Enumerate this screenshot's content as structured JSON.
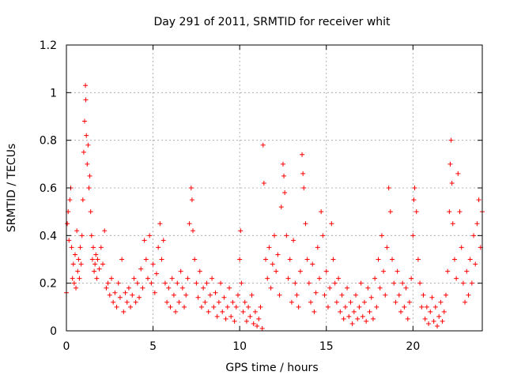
{
  "chart_data": {
    "type": "scatter",
    "title": "Day 291 of 2011, SRMTID for receiver whit",
    "xlabel": "GPS time / hours",
    "ylabel": "SRMTID / TECUs",
    "xlim": [
      0,
      24
    ],
    "ylim": [
      0,
      1.2
    ],
    "x_ticks": [
      0,
      5,
      10,
      15,
      20
    ],
    "x_tick_labels": [
      "0",
      "5",
      "10",
      "15",
      "20"
    ],
    "y_ticks": [
      0,
      0.2,
      0.4,
      0.6,
      0.8,
      1.0,
      1.2
    ],
    "y_tick_labels": [
      "0",
      "0.2",
      "0.4",
      "0.6",
      "0.8",
      "1",
      "1.2"
    ],
    "grid": true,
    "marker": "+",
    "series": [
      {
        "name": "SRMTID",
        "color": "#ff0000",
        "points": [
          [
            0.0,
            0.16
          ],
          [
            0.05,
            0.45
          ],
          [
            0.1,
            0.5
          ],
          [
            0.15,
            0.38
          ],
          [
            0.2,
            0.55
          ],
          [
            0.25,
            0.6
          ],
          [
            0.3,
            0.35
          ],
          [
            0.35,
            0.22
          ],
          [
            0.4,
            0.28
          ],
          [
            0.45,
            0.2
          ],
          [
            0.5,
            0.32
          ],
          [
            0.55,
            0.18
          ],
          [
            0.6,
            0.42
          ],
          [
            0.65,
            0.25
          ],
          [
            0.7,
            0.3
          ],
          [
            0.75,
            0.22
          ],
          [
            0.8,
            0.35
          ],
          [
            0.85,
            0.28
          ],
          [
            0.9,
            0.4
          ],
          [
            0.95,
            0.55
          ],
          [
            1.0,
            0.75
          ],
          [
            1.05,
            0.88
          ],
          [
            1.1,
            1.03
          ],
          [
            1.12,
            0.97
          ],
          [
            1.15,
            0.82
          ],
          [
            1.2,
            0.7
          ],
          [
            1.25,
            0.78
          ],
          [
            1.3,
            0.6
          ],
          [
            1.35,
            0.65
          ],
          [
            1.4,
            0.5
          ],
          [
            1.45,
            0.4
          ],
          [
            1.5,
            0.3
          ],
          [
            1.55,
            0.35
          ],
          [
            1.6,
            0.25
          ],
          [
            1.65,
            0.28
          ],
          [
            1.7,
            0.32
          ],
          [
            1.75,
            0.22
          ],
          [
            1.8,
            0.3
          ],
          [
            1.9,
            0.26
          ],
          [
            2.0,
            0.35
          ],
          [
            2.1,
            0.28
          ],
          [
            2.2,
            0.42
          ],
          [
            2.3,
            0.18
          ],
          [
            2.4,
            0.2
          ],
          [
            2.5,
            0.15
          ],
          [
            2.6,
            0.22
          ],
          [
            2.7,
            0.12
          ],
          [
            2.8,
            0.16
          ],
          [
            2.9,
            0.1
          ],
          [
            3.0,
            0.2
          ],
          [
            3.1,
            0.14
          ],
          [
            3.2,
            0.3
          ],
          [
            3.3,
            0.08
          ],
          [
            3.4,
            0.16
          ],
          [
            3.5,
            0.12
          ],
          [
            3.6,
            0.18
          ],
          [
            3.7,
            0.1
          ],
          [
            3.8,
            0.15
          ],
          [
            3.9,
            0.22
          ],
          [
            4.0,
            0.12
          ],
          [
            4.1,
            0.2
          ],
          [
            4.2,
            0.14
          ],
          [
            4.3,
            0.26
          ],
          [
            4.4,
            0.18
          ],
          [
            4.5,
            0.38
          ],
          [
            4.6,
            0.3
          ],
          [
            4.7,
            0.22
          ],
          [
            4.8,
            0.4
          ],
          [
            4.9,
            0.2
          ],
          [
            5.0,
            0.28
          ],
          [
            5.1,
            0.16
          ],
          [
            5.2,
            0.24
          ],
          [
            5.3,
            0.35
          ],
          [
            5.4,
            0.45
          ],
          [
            5.5,
            0.3
          ],
          [
            5.6,
            0.38
          ],
          [
            5.7,
            0.2
          ],
          [
            5.8,
            0.12
          ],
          [
            5.9,
            0.18
          ],
          [
            6.0,
            0.1
          ],
          [
            6.1,
            0.22
          ],
          [
            6.2,
            0.15
          ],
          [
            6.3,
            0.08
          ],
          [
            6.4,
            0.2
          ],
          [
            6.5,
            0.12
          ],
          [
            6.6,
            0.25
          ],
          [
            6.7,
            0.18
          ],
          [
            6.8,
            0.1
          ],
          [
            6.9,
            0.15
          ],
          [
            7.0,
            0.22
          ],
          [
            7.1,
            0.45
          ],
          [
            7.2,
            0.6
          ],
          [
            7.25,
            0.55
          ],
          [
            7.3,
            0.42
          ],
          [
            7.4,
            0.3
          ],
          [
            7.5,
            0.2
          ],
          [
            7.6,
            0.14
          ],
          [
            7.7,
            0.25
          ],
          [
            7.8,
            0.1
          ],
          [
            7.9,
            0.18
          ],
          [
            8.0,
            0.12
          ],
          [
            8.1,
            0.2
          ],
          [
            8.2,
            0.08
          ],
          [
            8.3,
            0.15
          ],
          [
            8.4,
            0.22
          ],
          [
            8.5,
            0.1
          ],
          [
            8.6,
            0.16
          ],
          [
            8.7,
            0.06
          ],
          [
            8.8,
            0.12
          ],
          [
            8.9,
            0.2
          ],
          [
            9.0,
            0.08
          ],
          [
            9.1,
            0.14
          ],
          [
            9.2,
            0.05
          ],
          [
            9.3,
            0.1
          ],
          [
            9.4,
            0.18
          ],
          [
            9.5,
            0.06
          ],
          [
            9.6,
            0.12
          ],
          [
            9.7,
            0.04
          ],
          [
            9.8,
            0.1
          ],
          [
            9.9,
            0.15
          ],
          [
            10.0,
            0.3
          ],
          [
            10.05,
            0.42
          ],
          [
            10.1,
            0.2
          ],
          [
            10.2,
            0.08
          ],
          [
            10.3,
            0.12
          ],
          [
            10.4,
            0.04
          ],
          [
            10.5,
            0.1
          ],
          [
            10.6,
            0.06
          ],
          [
            10.7,
            0.15
          ],
          [
            10.8,
            0.03
          ],
          [
            10.9,
            0.08
          ],
          [
            11.0,
            0.02
          ],
          [
            11.1,
            0.05
          ],
          [
            11.2,
            0.1
          ],
          [
            11.3,
            0.01
          ],
          [
            11.35,
            0.78
          ],
          [
            11.4,
            0.62
          ],
          [
            11.5,
            0.3
          ],
          [
            11.6,
            0.22
          ],
          [
            11.7,
            0.35
          ],
          [
            11.8,
            0.18
          ],
          [
            11.9,
            0.28
          ],
          [
            12.0,
            0.4
          ],
          [
            12.1,
            0.25
          ],
          [
            12.2,
            0.32
          ],
          [
            12.3,
            0.15
          ],
          [
            12.4,
            0.52
          ],
          [
            12.5,
            0.7
          ],
          [
            12.55,
            0.65
          ],
          [
            12.6,
            0.58
          ],
          [
            12.7,
            0.4
          ],
          [
            12.8,
            0.22
          ],
          [
            12.9,
            0.3
          ],
          [
            13.0,
            0.12
          ],
          [
            13.1,
            0.38
          ],
          [
            13.2,
            0.2
          ],
          [
            13.3,
            0.15
          ],
          [
            13.4,
            0.1
          ],
          [
            13.5,
            0.25
          ],
          [
            13.6,
            0.74
          ],
          [
            13.65,
            0.66
          ],
          [
            13.7,
            0.6
          ],
          [
            13.8,
            0.45
          ],
          [
            13.9,
            0.3
          ],
          [
            14.0,
            0.2
          ],
          [
            14.1,
            0.12
          ],
          [
            14.2,
            0.28
          ],
          [
            14.3,
            0.08
          ],
          [
            14.4,
            0.16
          ],
          [
            14.5,
            0.35
          ],
          [
            14.6,
            0.22
          ],
          [
            14.7,
            0.5
          ],
          [
            14.8,
            0.4
          ],
          [
            14.9,
            0.15
          ],
          [
            15.0,
            0.25
          ],
          [
            15.1,
            0.1
          ],
          [
            15.2,
            0.18
          ],
          [
            15.3,
            0.45
          ],
          [
            15.4,
            0.3
          ],
          [
            15.5,
            0.2
          ],
          [
            15.6,
            0.12
          ],
          [
            15.7,
            0.22
          ],
          [
            15.8,
            0.08
          ],
          [
            15.9,
            0.15
          ],
          [
            16.0,
            0.05
          ],
          [
            16.1,
            0.1
          ],
          [
            16.2,
            0.18
          ],
          [
            16.3,
            0.06
          ],
          [
            16.4,
            0.12
          ],
          [
            16.5,
            0.03
          ],
          [
            16.6,
            0.08
          ],
          [
            16.7,
            0.15
          ],
          [
            16.8,
            0.05
          ],
          [
            16.9,
            0.1
          ],
          [
            17.0,
            0.2
          ],
          [
            17.1,
            0.06
          ],
          [
            17.2,
            0.12
          ],
          [
            17.3,
            0.04
          ],
          [
            17.4,
            0.18
          ],
          [
            17.5,
            0.08
          ],
          [
            17.6,
            0.14
          ],
          [
            17.7,
            0.05
          ],
          [
            17.8,
            0.22
          ],
          [
            17.9,
            0.1
          ],
          [
            18.0,
            0.3
          ],
          [
            18.1,
            0.18
          ],
          [
            18.2,
            0.4
          ],
          [
            18.3,
            0.25
          ],
          [
            18.4,
            0.15
          ],
          [
            18.5,
            0.35
          ],
          [
            18.6,
            0.6
          ],
          [
            18.7,
            0.5
          ],
          [
            18.8,
            0.3
          ],
          [
            18.9,
            0.2
          ],
          [
            19.0,
            0.12
          ],
          [
            19.1,
            0.25
          ],
          [
            19.2,
            0.15
          ],
          [
            19.3,
            0.08
          ],
          [
            19.4,
            0.2
          ],
          [
            19.5,
            0.1
          ],
          [
            19.6,
            0.18
          ],
          [
            19.7,
            0.05
          ],
          [
            19.8,
            0.12
          ],
          [
            19.9,
            0.22
          ],
          [
            20.0,
            0.4
          ],
          [
            20.05,
            0.55
          ],
          [
            20.1,
            0.6
          ],
          [
            20.2,
            0.5
          ],
          [
            20.3,
            0.3
          ],
          [
            20.4,
            0.2
          ],
          [
            20.5,
            0.1
          ],
          [
            20.6,
            0.15
          ],
          [
            20.7,
            0.05
          ],
          [
            20.8,
            0.1
          ],
          [
            20.9,
            0.03
          ],
          [
            21.0,
            0.08
          ],
          [
            21.1,
            0.14
          ],
          [
            21.2,
            0.04
          ],
          [
            21.3,
            0.1
          ],
          [
            21.4,
            0.02
          ],
          [
            21.5,
            0.06
          ],
          [
            21.6,
            0.12
          ],
          [
            21.7,
            0.04
          ],
          [
            21.8,
            0.08
          ],
          [
            21.9,
            0.15
          ],
          [
            22.0,
            0.25
          ],
          [
            22.1,
            0.5
          ],
          [
            22.15,
            0.7
          ],
          [
            22.2,
            0.8
          ],
          [
            22.25,
            0.62
          ],
          [
            22.3,
            0.45
          ],
          [
            22.4,
            0.3
          ],
          [
            22.5,
            0.22
          ],
          [
            22.6,
            0.66
          ],
          [
            22.7,
            0.5
          ],
          [
            22.8,
            0.35
          ],
          [
            22.9,
            0.2
          ],
          [
            23.0,
            0.12
          ],
          [
            23.1,
            0.25
          ],
          [
            23.2,
            0.15
          ],
          [
            23.3,
            0.3
          ],
          [
            23.4,
            0.2
          ],
          [
            23.5,
            0.4
          ],
          [
            23.6,
            0.28
          ],
          [
            23.7,
            0.45
          ],
          [
            23.8,
            0.55
          ],
          [
            23.9,
            0.35
          ],
          [
            24.0,
            0.5
          ]
        ]
      }
    ]
  }
}
